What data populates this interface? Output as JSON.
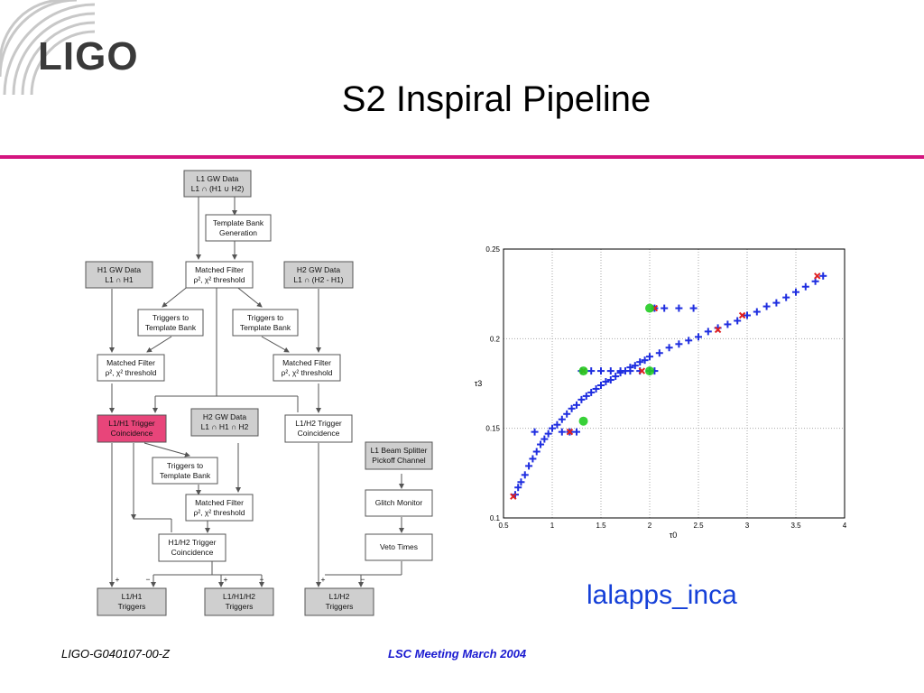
{
  "slide": {
    "logo_text": "LIGO",
    "title": "S2 Inspiral Pipeline",
    "tool_label": "lalapps_inca",
    "footer_left": "LIGO-G040107-00-Z",
    "footer_center": "LSC Meeting March 2004",
    "accent_color": "#d4147f",
    "link_color": "#1540d8"
  },
  "flowchart": {
    "nodes": {
      "l1_data": [
        "L1 GW Data",
        "L1 ∩ (H1 ∪ H2)"
      ],
      "template_bank": [
        "Template Bank",
        "Generation"
      ],
      "h1_data": [
        "H1 GW Data",
        "L1 ∩ H1"
      ],
      "mf_l1": [
        "Matched Filter",
        "ρ², χ² threshold"
      ],
      "h2_data": [
        "H2 GW Data",
        "L1 ∩ (H2 - H1)"
      ],
      "trig_tb_left": [
        "Triggers to",
        "Template Bank"
      ],
      "trig_tb_right": [
        "Triggers to",
        "Template Bank"
      ],
      "mf_h1": [
        "Matched Filter",
        "ρ², χ² threshold"
      ],
      "mf_h2": [
        "Matched Filter",
        "ρ², χ² threshold"
      ],
      "l1h1_coinc": [
        "L1/H1 Trigger",
        "Coincidence"
      ],
      "h2_data_2": [
        "H2 GW Data",
        "L1 ∩ H1 ∩ H2"
      ],
      "l1h2_coinc": [
        "L1/H2 Trigger",
        "Coincidence"
      ],
      "beam_splitter": [
        "L1 Beam Splitter",
        "Pickoff Channel"
      ],
      "trig_tb_mid": [
        "Triggers to",
        "Template Bank"
      ],
      "glitch": [
        "Glitch Monitor"
      ],
      "mf_h2b": [
        "Matched Filter",
        "ρ², χ² threshold"
      ],
      "h1h2_coinc": [
        "H1/H2 Trigger",
        "Coincidence"
      ],
      "veto": [
        "Veto Times"
      ],
      "out_l1h1": [
        "L1/H1",
        "Triggers"
      ],
      "out_l1h1h2": [
        "L1/H1/H2",
        "Triggers"
      ],
      "out_l1h2": [
        "L1/H2",
        "Triggers"
      ]
    },
    "colors": {
      "data_box": "#cfcfcf",
      "process_box": "#ffffff",
      "highlight_box": "#e8457a"
    },
    "signs": {
      "plus": "+",
      "minus": "−"
    }
  },
  "chart_data": {
    "type": "scatter",
    "xlabel": "τ0",
    "ylabel": "τ3",
    "xlim": [
      0.5,
      4
    ],
    "ylim": [
      0.1,
      0.25
    ],
    "xticks": [
      "0.5",
      "1",
      "1.5",
      "2",
      "2.5",
      "3",
      "3.5",
      "4"
    ],
    "yticks": [
      "0.1",
      "0.15",
      "0.2",
      "0.25"
    ],
    "grid": true,
    "series": [
      {
        "marker": "plus",
        "color": "#1f2ee0",
        "points": [
          [
            0.62,
            0.113
          ],
          [
            0.65,
            0.117
          ],
          [
            0.68,
            0.12
          ],
          [
            0.72,
            0.124
          ],
          [
            0.76,
            0.129
          ],
          [
            0.8,
            0.133
          ],
          [
            0.84,
            0.137
          ],
          [
            0.88,
            0.141
          ],
          [
            0.92,
            0.144
          ],
          [
            0.96,
            0.147
          ],
          [
            1.0,
            0.15
          ],
          [
            1.05,
            0.152
          ],
          [
            1.1,
            0.155
          ],
          [
            1.15,
            0.158
          ],
          [
            1.2,
            0.161
          ],
          [
            1.25,
            0.163
          ],
          [
            1.3,
            0.166
          ],
          [
            1.35,
            0.168
          ],
          [
            1.4,
            0.17
          ],
          [
            1.45,
            0.172
          ],
          [
            1.5,
            0.174
          ],
          [
            1.55,
            0.176
          ],
          [
            1.6,
            0.177
          ],
          [
            1.65,
            0.179
          ],
          [
            1.7,
            0.181
          ],
          [
            1.75,
            0.182
          ],
          [
            1.8,
            0.184
          ],
          [
            1.85,
            0.185
          ],
          [
            1.9,
            0.187
          ],
          [
            1.95,
            0.188
          ],
          [
            2.0,
            0.19
          ],
          [
            2.1,
            0.192
          ],
          [
            2.2,
            0.195
          ],
          [
            2.3,
            0.197
          ],
          [
            2.4,
            0.199
          ],
          [
            2.5,
            0.201
          ],
          [
            2.6,
            0.204
          ],
          [
            2.7,
            0.206
          ],
          [
            2.8,
            0.208
          ],
          [
            2.9,
            0.21
          ],
          [
            3.0,
            0.213
          ],
          [
            3.1,
            0.215
          ],
          [
            3.2,
            0.218
          ],
          [
            3.3,
            0.22
          ],
          [
            3.4,
            0.223
          ],
          [
            3.5,
            0.226
          ],
          [
            3.6,
            0.229
          ],
          [
            3.7,
            0.232
          ],
          [
            3.78,
            0.235
          ],
          [
            0.82,
            0.148
          ],
          [
            1.1,
            0.148
          ],
          [
            1.18,
            0.148
          ],
          [
            1.25,
            0.148
          ],
          [
            1.3,
            0.182
          ],
          [
            1.4,
            0.182
          ],
          [
            1.5,
            0.182
          ],
          [
            1.6,
            0.182
          ],
          [
            1.7,
            0.182
          ],
          [
            1.8,
            0.182
          ],
          [
            1.9,
            0.182
          ],
          [
            2.0,
            0.182
          ],
          [
            2.05,
            0.182
          ],
          [
            2.05,
            0.217
          ],
          [
            2.15,
            0.217
          ],
          [
            2.3,
            0.217
          ],
          [
            2.45,
            0.217
          ]
        ]
      },
      {
        "marker": "x",
        "color": "#e02020",
        "points": [
          [
            0.6,
            0.112
          ],
          [
            1.18,
            0.148
          ],
          [
            1.32,
            0.182
          ],
          [
            1.92,
            0.182
          ],
          [
            2.05,
            0.217
          ],
          [
            2.7,
            0.205
          ],
          [
            2.95,
            0.213
          ],
          [
            3.72,
            0.235
          ]
        ]
      },
      {
        "marker": "circle",
        "color": "#22cc22",
        "points": [
          [
            1.32,
            0.154
          ],
          [
            1.32,
            0.182
          ],
          [
            2.0,
            0.182
          ],
          [
            2.0,
            0.217
          ]
        ]
      }
    ]
  }
}
